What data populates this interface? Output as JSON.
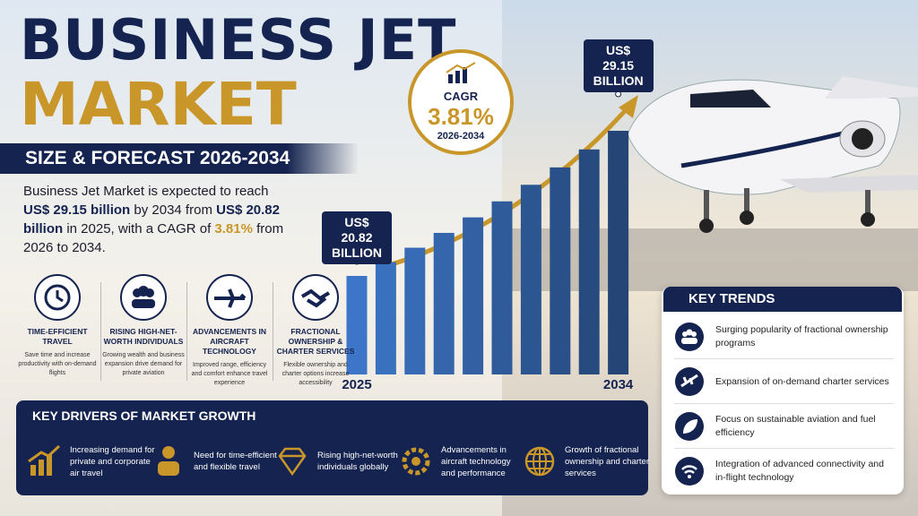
{
  "header": {
    "title_line1": "BUSINESS JET",
    "title_line2": "MARKET",
    "subtitle": "SIZE & FORECAST 2026-2034"
  },
  "description": [
    "Business Jet Market is expected to reach ",
    "US$ 29.15 billion",
    " by 2034 from ",
    "US$ 20.82 billion",
    " in 2025, with a CAGR of ",
    "3.81%",
    " from 2026 to 2034."
  ],
  "cagr": {
    "label": "CAGR",
    "value": "3.81%",
    "period": "2026-2034"
  },
  "chart_data": {
    "type": "bar",
    "categories": [
      "2025",
      null,
      null,
      null,
      null,
      null,
      null,
      null,
      null,
      "2034"
    ],
    "values": [
      20.82,
      21.61,
      22.44,
      23.29,
      24.18,
      25.1,
      26.05,
      27.05,
      28.08,
      29.15
    ],
    "value_labels": [
      "US$ 20.82 BILLION",
      null,
      null,
      null,
      null,
      null,
      null,
      null,
      null,
      "US$ 29.15 BILLION"
    ],
    "color": "#2f5b9a"
  },
  "factors": [
    {
      "title": "TIME-EFFICIENT TRAVEL",
      "text": "Save time and increase productivity with on-demand flights"
    },
    {
      "title": "RISING HIGH-NET-WORTH INDIVIDUALS",
      "text": "Growing wealth and business expansion drive demand for private aviation"
    },
    {
      "title": "ADVANCEMENTS IN AIRCRAFT TECHNOLOGY",
      "text": "Improved range, efficiency and comfort enhance travel experience"
    },
    {
      "title": "FRACTIONAL OWNERSHIP & CHARTER SERVICES",
      "text": "Flexible ownership and charter options increase accessibility"
    }
  ],
  "drivers": {
    "title": "KEY DRIVERS OF MARKET GROWTH",
    "items": [
      "Increasing demand for private and corporate air travel",
      "Need for time-efficient and flexible travel",
      "Rising high-net-worth individuals globally",
      "Advancements in aircraft technology and performance",
      "Growth of fractional ownership and charter services"
    ]
  },
  "trends": {
    "title": "KEY TRENDS",
    "items": [
      "Surging popularity of fractional ownership programs",
      "Expansion of on-demand charter services",
      "Focus on sustainable aviation and fuel efficiency",
      "Integration of advanced connectivity and in-flight technology"
    ]
  }
}
